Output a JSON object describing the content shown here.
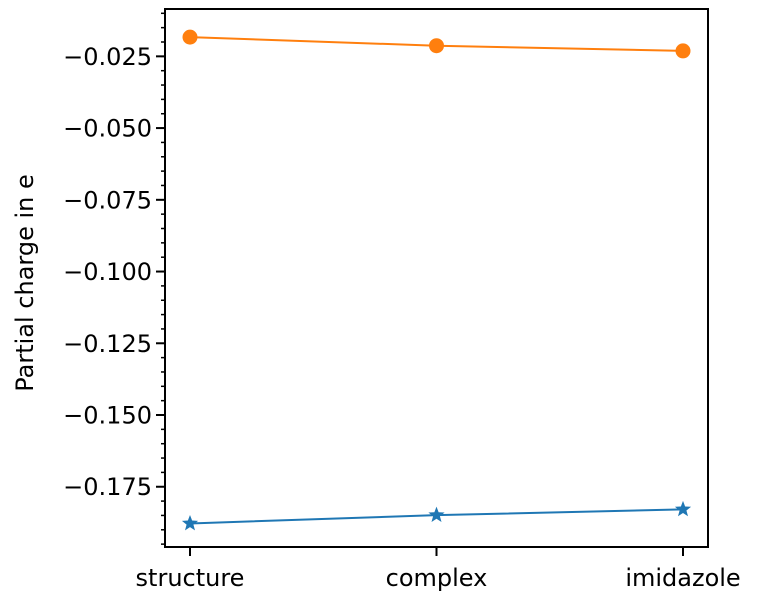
{
  "chart_data": {
    "type": "line",
    "title": "",
    "xlabel": "",
    "ylabel": "Partial charge in e",
    "categories": [
      "structure",
      "complex",
      "imidazole"
    ],
    "series": [
      {
        "values": [
          -0.0183,
          -0.0213,
          -0.0231
        ],
        "color": "#ff7f0e",
        "marker": "circle"
      },
      {
        "values": [
          -0.1878,
          -0.1849,
          -0.1829
        ],
        "color": "#1f77b4",
        "marker": "star"
      }
    ],
    "ylim": [
      -0.196,
      -0.0085
    ],
    "yticks": [
      -0.025,
      -0.05,
      -0.075,
      -0.1,
      -0.125,
      -0.15,
      -0.175
    ],
    "ytick_labels": [
      "−0.025",
      "−0.050",
      "−0.075",
      "−0.100",
      "−0.125",
      "−0.150",
      "−0.175"
    ],
    "grid": false,
    "legend": "none"
  }
}
